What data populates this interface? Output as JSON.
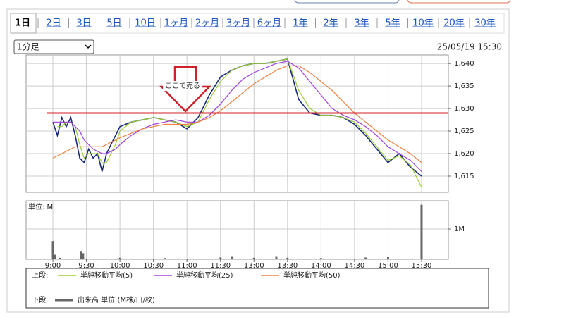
{
  "ui": {
    "tabs": [
      "1日",
      "2日",
      "3日",
      "5日",
      "10日",
      "1ヶ月",
      "2ヶ月",
      "3ヶ月",
      "6ヶ月",
      "1年",
      "2年",
      "3年",
      "5年",
      "10年",
      "20年",
      "30年"
    ],
    "selected_tab": 0,
    "interval": "1分足",
    "datetime": "25/05/19 15:30",
    "legend": {
      "upper": "上段:",
      "lower": "下段:"
    }
  },
  "chart_data": [
    {
      "type": "line",
      "x": [
        0,
        4,
        8,
        12,
        16,
        20,
        24,
        28,
        32,
        36,
        40,
        44,
        48,
        52,
        56,
        60,
        70,
        80,
        90,
        100,
        110,
        120,
        130,
        140,
        150,
        160,
        170,
        180,
        190,
        200,
        210,
        220,
        230,
        240,
        250,
        260,
        270,
        280,
        290,
        300,
        310,
        320,
        330
      ],
      "series": [
        {
          "color": "#1a2a7a",
          "values": [
            1627,
            1624,
            1628,
            1626,
            1628,
            1624,
            1619,
            1618,
            1621,
            1619,
            1620,
            1616,
            1620,
            1622,
            1624,
            1626,
            1627,
            1627.5,
            1628,
            1627.5,
            1627,
            1625.5,
            1628,
            1633,
            1637,
            1638.5,
            1639.5,
            1640,
            1640,
            1640.5,
            1641,
            1632,
            1629,
            1628.5,
            1628.5,
            1628,
            1626.5,
            1624,
            1621,
            1618,
            1620,
            1617,
            1615
          ]
        },
        {
          "name": "単純移動平均(5)",
          "color": "#9acd32",
          "values": [
            null,
            1626,
            1626,
            1627,
            1627,
            1626,
            1622,
            1619,
            1620,
            1620,
            1620,
            1618,
            1618,
            1620,
            1622,
            1625,
            1627,
            1627.5,
            1628,
            1627.5,
            1627,
            1626,
            1627,
            1632,
            1636,
            1638.5,
            1639.5,
            1640,
            1640,
            1640.5,
            1641,
            1634,
            1630,
            1628.5,
            1628.5,
            1628,
            1627,
            1624.5,
            1621.5,
            1618.5,
            1619.5,
            1617.5,
            1612.5
          ]
        },
        {
          "name": "単純移動平均(25)",
          "color": "#a040e0",
          "values": [
            1627,
            1627,
            1627,
            1627,
            1627,
            1626,
            1625,
            1623,
            1622,
            1621,
            1620.5,
            1620,
            1620,
            1620.5,
            1621,
            1622,
            1624,
            1625.5,
            1626.5,
            1627,
            1627.5,
            1627,
            1627,
            1628.5,
            1631,
            1634,
            1636.5,
            1638,
            1639,
            1640,
            1640.5,
            1639,
            1636,
            1633,
            1630,
            1628.5,
            1627.5,
            1626,
            1624,
            1621.5,
            1620,
            1618.5,
            1616
          ]
        },
        {
          "name": "単純移動平均(50)",
          "color": "#f08040",
          "values": [
            1619,
            1619.5,
            1620,
            1620.5,
            1621,
            1621.5,
            1621.5,
            1621.5,
            1621.5,
            1621.5,
            1621.5,
            1621.5,
            1622,
            1622.5,
            1623,
            1623.5,
            1624.5,
            1625.5,
            1626,
            1626.5,
            1626.5,
            1626.5,
            1627,
            1628,
            1629.5,
            1631.5,
            1633.5,
            1635.5,
            1637,
            1638.5,
            1639.5,
            1639.5,
            1638,
            1636,
            1634,
            1631.5,
            1629,
            1627,
            1625,
            1623,
            1621.5,
            1620,
            1618
          ]
        }
      ],
      "xlim": [
        -24,
        354
      ],
      "ylim": [
        1611.4,
        1641.9
      ],
      "yticks": [
        {
          "value": 1615,
          "label": "1,615"
        },
        {
          "value": 1620,
          "label": "1,620"
        },
        {
          "value": 1625,
          "label": "1,625"
        },
        {
          "value": 1630,
          "label": "1,630"
        },
        {
          "value": 1635,
          "label": "1,635"
        },
        {
          "value": 1640,
          "label": "1,640"
        }
      ],
      "hline": {
        "value": 1629,
        "color": "#d0202a"
      },
      "annotation": "ここで売る",
      "grid": true
    },
    {
      "type": "bar",
      "unit_label": "単位: M",
      "x": [
        0,
        2,
        6,
        25,
        27,
        60,
        100,
        150,
        160,
        180,
        200,
        210,
        240,
        280,
        300,
        330
      ],
      "series": [
        {
          "name": "出来高 単位:(M株/口/枚)",
          "color": "#666666",
          "values": [
            0.6,
            0.15,
            0.05,
            0.25,
            0.2,
            0.05,
            0.04,
            0.06,
            0.08,
            0.05,
            0.08,
            0.05,
            0.04,
            0.06,
            0.07,
            1.8
          ]
        }
      ],
      "xlim": [
        -24,
        354
      ],
      "ylim": [
        0,
        1.93
      ],
      "yticks": [
        {
          "value": 1,
          "label": "1M"
        }
      ],
      "xticks": [
        {
          "value": 0,
          "label": "9:00"
        },
        {
          "value": 30,
          "label": "9:30"
        },
        {
          "value": 60,
          "label": "10:00"
        },
        {
          "value": 90,
          "label": "10:30"
        },
        {
          "value": 120,
          "label": "11:00"
        },
        {
          "value": 150,
          "label": "11:30"
        },
        {
          "value": 180,
          "label": "13:00"
        },
        {
          "value": 210,
          "label": "13:30"
        },
        {
          "value": 240,
          "label": "14:00"
        },
        {
          "value": 270,
          "label": "14:30"
        },
        {
          "value": 300,
          "label": "15:00"
        },
        {
          "value": 330,
          "label": "15:30"
        }
      ],
      "grid": true
    }
  ]
}
